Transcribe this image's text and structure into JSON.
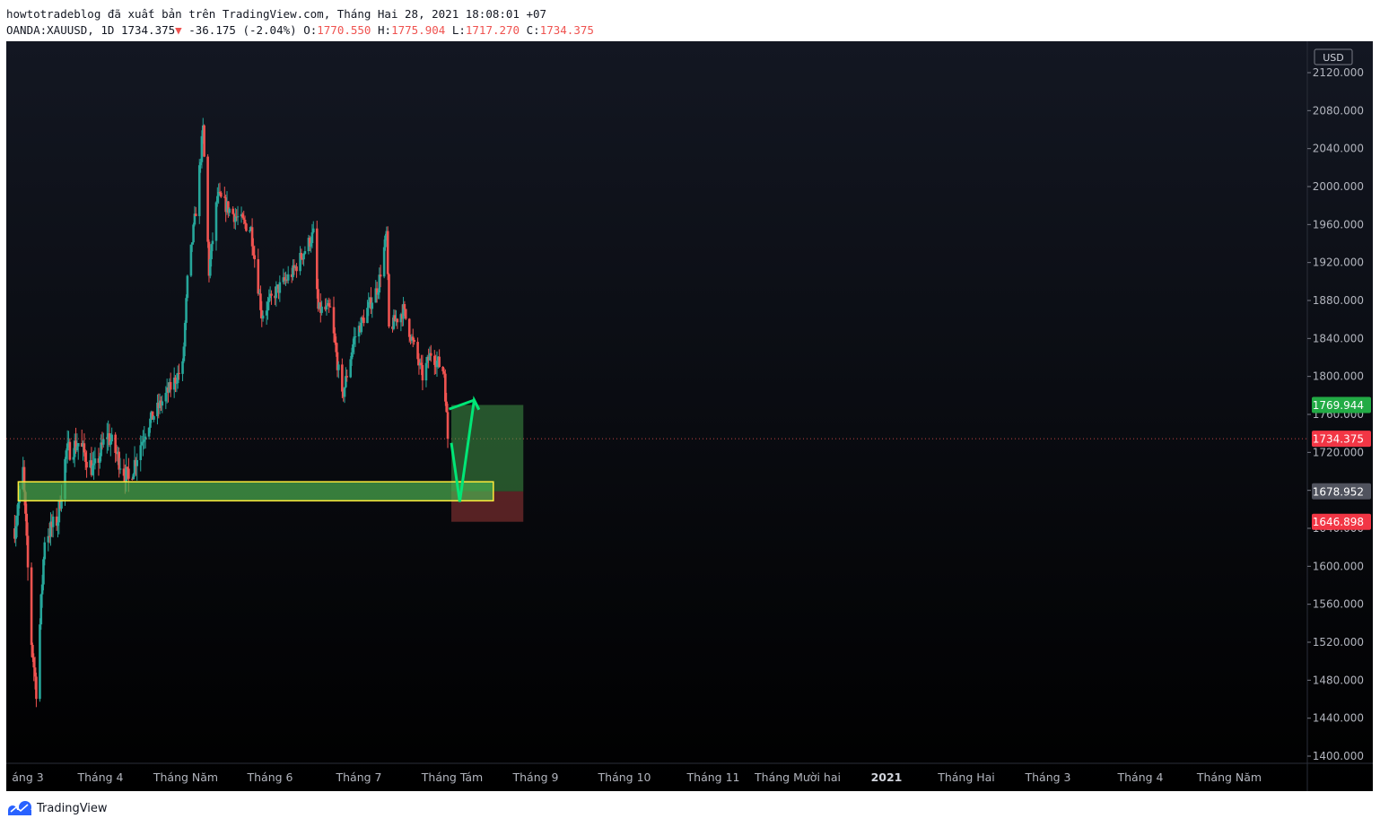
{
  "header": {
    "line1": "howtotradeblog đã xuất bản trên TradingView.com, Tháng Hai 28, 2021 18:08:01 +07",
    "symbol": "OANDA:XAUUSD, 1D",
    "last": "1734.375",
    "change": "-36.175 (-2.04%)",
    "open_label": "O:",
    "open": "1770.550",
    "high_label": "H:",
    "high": "1775.904",
    "low_label": "L:",
    "low": "1717.270",
    "close_label": "C:",
    "close": "1734.375"
  },
  "footer": {
    "brand": "TradingView",
    "icon": "tradingview-logo-icon"
  },
  "colors": {
    "background_top": "#131722",
    "background_bottom": "#000000",
    "up": "#26a69a",
    "down": "#ef5350",
    "zone_fill": "#4caf50",
    "zone_border": "#ffeb3b",
    "target": "#4caf50",
    "stop": "#ef5350",
    "arrow": "#00e676"
  },
  "chart_data": {
    "type": "candlestick",
    "symbol": "OANDA:XAUUSD",
    "interval": "1D",
    "currency": "USD",
    "ylim": [
      1390,
      2140
    ],
    "y_ticks": [
      2120,
      2080,
      2040,
      2000,
      1960,
      1920,
      1880,
      1840,
      1800,
      1760,
      1720,
      1680,
      1640,
      1600,
      1560,
      1520,
      1480,
      1440,
      1400
    ],
    "y_tick_labels": [
      "2120.000",
      "2080.000",
      "2040.000",
      "2000.000",
      "1960.000",
      "1920.000",
      "1880.000",
      "1840.000",
      "1800.000",
      "1760.000",
      "1720.000",
      "1680.000",
      "1640.000",
      "1600.000",
      "1560.000",
      "1520.000",
      "1480.000",
      "1440.000",
      "1400.000"
    ],
    "x_labels": [
      "áng 3",
      "Tháng 4",
      "Tháng Năm",
      "Tháng 6",
      "Tháng 7",
      "Tháng Tám",
      "Tháng 9",
      "Tháng 10",
      "Tháng 11",
      "Tháng Mười hai",
      "2021",
      "Tháng Hai",
      "Tháng 3",
      "Tháng 4",
      "Tháng Năm"
    ],
    "x_label_bold": "2021",
    "grid": false,
    "price_path": [
      [
        "2020-03-02",
        1640
      ],
      [
        "2020-03-09",
        1700
      ],
      [
        "2020-03-16",
        1520
      ],
      [
        "2020-03-20",
        1470
      ],
      [
        "2020-03-27",
        1630
      ],
      [
        "2020-04-07",
        1650
      ],
      [
        "2020-04-14",
        1720
      ],
      [
        "2020-04-24",
        1730
      ],
      [
        "2020-05-07",
        1700
      ],
      [
        "2020-05-18",
        1740
      ],
      [
        "2020-06-05",
        1690
      ],
      [
        "2020-06-19",
        1745
      ],
      [
        "2020-07-06",
        1780
      ],
      [
        "2020-07-20",
        1810
      ],
      [
        "2020-07-24",
        1900
      ],
      [
        "2020-07-31",
        1975
      ],
      [
        "2020-08-06",
        2060
      ],
      [
        "2020-08-11",
        1910
      ],
      [
        "2020-08-18",
        1990
      ],
      [
        "2020-09-01",
        1970
      ],
      [
        "2020-09-15",
        1955
      ],
      [
        "2020-09-24",
        1865
      ],
      [
        "2020-10-06",
        1890
      ],
      [
        "2020-10-20",
        1910
      ],
      [
        "2020-11-06",
        1950
      ],
      [
        "2020-11-10",
        1870
      ],
      [
        "2020-11-20",
        1870
      ],
      [
        "2020-11-30",
        1777
      ],
      [
        "2020-12-10",
        1840
      ],
      [
        "2020-12-30",
        1895
      ],
      [
        "2021-01-06",
        1950
      ],
      [
        "2021-01-08",
        1850
      ],
      [
        "2021-01-20",
        1870
      ],
      [
        "2021-02-05",
        1800
      ],
      [
        "2021-02-12",
        1825
      ],
      [
        "2021-02-23",
        1805
      ],
      [
        "2021-02-26",
        1734
      ]
    ],
    "last_price": 1734.375,
    "last_price_label": "1734.375",
    "support_zone": {
      "top": 1689,
      "bottom": 1669,
      "from": "2020-03-05",
      "to": "2021-04-05"
    },
    "long_position": {
      "entry": 1678.952,
      "target": 1769.944,
      "stop": 1646.898,
      "from": "2021-03-01",
      "to": "2021-04-30",
      "entry_label": "1678.952",
      "target_label": "1769.944",
      "stop_label": "1646.898"
    },
    "projection_path": [
      [
        "2021-03-01",
        1730
      ],
      [
        "2021-03-08",
        1668
      ],
      [
        "2021-03-20",
        1775
      ],
      [
        "2021-03-24",
        1765
      ]
    ]
  }
}
